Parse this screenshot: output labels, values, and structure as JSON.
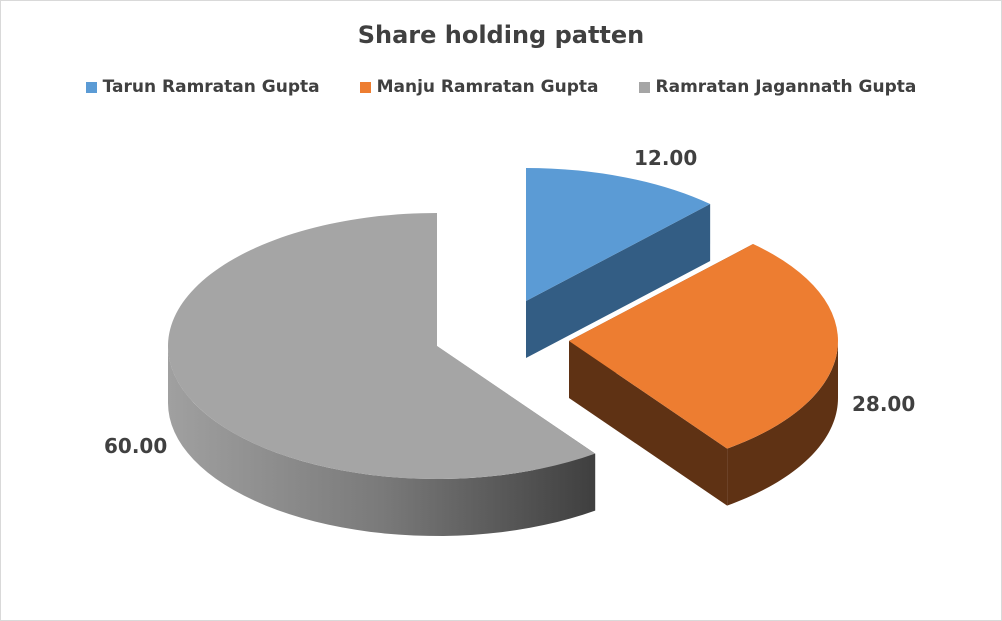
{
  "chart_data": {
    "type": "pie",
    "style": "3d-exploded",
    "title": "Share holding patten",
    "legend_position": "top",
    "categories": [
      "Tarun Ramratan Gupta",
      "Manju Ramratan Gupta",
      "Ramratan Jagannath Gupta"
    ],
    "values": [
      12.0,
      28.0,
      60.0
    ],
    "data_labels": [
      "12.00",
      "28.00",
      "60.00"
    ],
    "colors": [
      "#5B9BD5",
      "#ED7D31",
      "#A5A5A5"
    ]
  }
}
